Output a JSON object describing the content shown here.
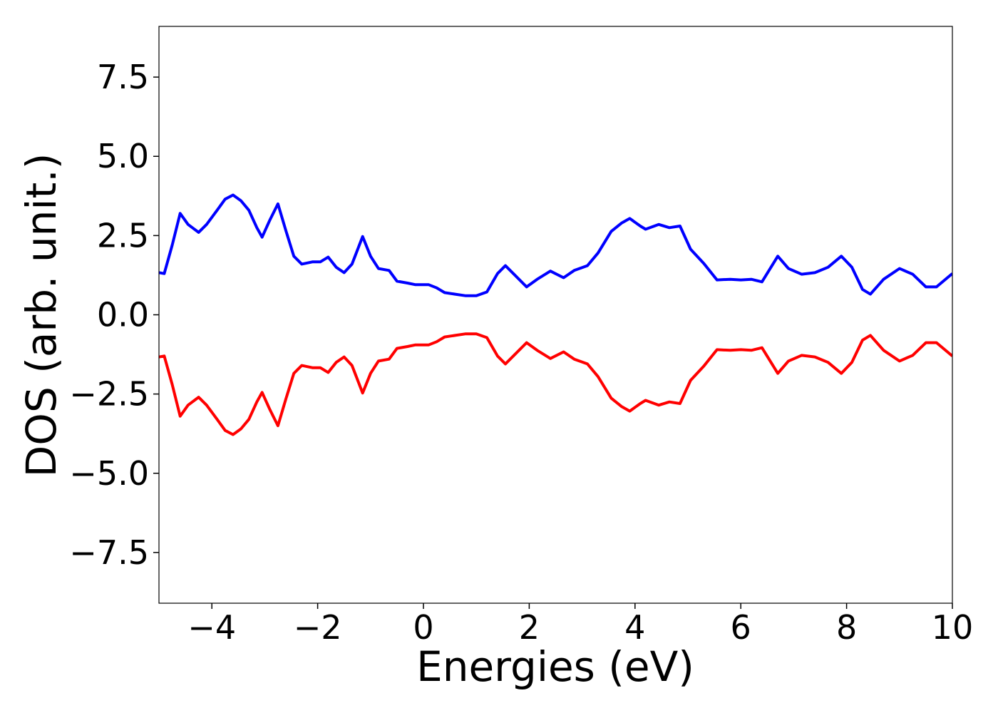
{
  "chart_data": {
    "type": "line",
    "xlabel": "Energies (eV)",
    "ylabel": "DOS (arb. unit.)",
    "x": [
      -5,
      -4.9,
      -4.75,
      -4.6,
      -4.45,
      -4.25,
      -4.1,
      -3.9,
      -3.75,
      -3.6,
      -3.45,
      -3.3,
      -3.15,
      -3.05,
      -2.9,
      -2.75,
      -2.6,
      -2.45,
      -2.3,
      -2.1,
      -1.95,
      -1.8,
      -1.65,
      -1.5,
      -1.35,
      -1.15,
      -1.0,
      -0.85,
      -0.65,
      -0.5,
      -0.3,
      -0.15,
      0.1,
      0.25,
      0.4,
      0.6,
      0.8,
      1.0,
      1.2,
      1.4,
      1.55,
      1.7,
      1.95,
      2.15,
      2.4,
      2.65,
      2.85,
      3.1,
      3.3,
      3.55,
      3.75,
      3.9,
      4.1,
      4.2,
      4.45,
      4.65,
      4.85,
      5.05,
      5.3,
      5.55,
      5.8,
      6.0,
      6.2,
      6.4,
      6.7,
      6.9,
      7.15,
      7.4,
      7.65,
      7.9,
      8.1,
      8.3,
      8.45,
      8.7,
      9.0,
      9.25,
      9.5,
      9.7,
      10
    ],
    "series": [
      {
        "color": "#0000ff",
        "values": [
          1.33,
          1.3,
          2.2,
          3.2,
          2.85,
          2.6,
          2.85,
          3.3,
          3.65,
          3.78,
          3.6,
          3.3,
          2.75,
          2.45,
          3.0,
          3.5,
          2.65,
          1.85,
          1.6,
          1.67,
          1.67,
          1.82,
          1.5,
          1.33,
          1.6,
          2.47,
          1.85,
          1.46,
          1.4,
          1.06,
          1.0,
          0.95,
          0.95,
          0.85,
          0.7,
          0.65,
          0.6,
          0.6,
          0.72,
          1.3,
          1.55,
          1.3,
          0.88,
          1.12,
          1.38,
          1.17,
          1.4,
          1.55,
          1.95,
          2.63,
          2.9,
          3.04,
          2.8,
          2.7,
          2.85,
          2.75,
          2.8,
          2.07,
          1.62,
          1.1,
          1.12,
          1.1,
          1.12,
          1.04,
          1.85,
          1.46,
          1.28,
          1.33,
          1.5,
          1.85,
          1.5,
          0.8,
          0.65,
          1.12,
          1.46,
          1.28,
          0.88,
          0.88,
          1.3
        ]
      },
      {
        "color": "#ff0000",
        "values": [
          -1.33,
          -1.3,
          -2.2,
          -3.2,
          -2.85,
          -2.6,
          -2.85,
          -3.3,
          -3.65,
          -3.78,
          -3.6,
          -3.3,
          -2.75,
          -2.45,
          -3.0,
          -3.5,
          -2.65,
          -1.85,
          -1.6,
          -1.67,
          -1.67,
          -1.82,
          -1.5,
          -1.33,
          -1.6,
          -2.47,
          -1.85,
          -1.46,
          -1.4,
          -1.06,
          -1.0,
          -0.95,
          -0.95,
          -0.85,
          -0.7,
          -0.65,
          -0.6,
          -0.6,
          -0.72,
          -1.3,
          -1.55,
          -1.3,
          -0.88,
          -1.12,
          -1.38,
          -1.17,
          -1.4,
          -1.55,
          -1.95,
          -2.63,
          -2.9,
          -3.04,
          -2.8,
          -2.7,
          -2.85,
          -2.75,
          -2.8,
          -2.07,
          -1.62,
          -1.1,
          -1.12,
          -1.1,
          -1.12,
          -1.04,
          -1.85,
          -1.46,
          -1.28,
          -1.33,
          -1.5,
          -1.85,
          -1.5,
          -0.8,
          -0.65,
          -1.12,
          -1.46,
          -1.28,
          -0.88,
          -0.88,
          -1.3
        ]
      }
    ],
    "xlim": [
      -5,
      10
    ],
    "xticks": [
      {
        "value": -4,
        "label": "−4"
      },
      {
        "value": -2,
        "label": "−2"
      },
      0,
      2,
      4,
      6,
      8,
      10
    ],
    "ylim": [
      -9.1,
      9.1
    ],
    "yticks": [
      {
        "value": -7.5,
        "label": "−7.5"
      },
      {
        "value": -5,
        "label": "−5.0"
      },
      {
        "value": -2.5,
        "label": "−2.5"
      },
      {
        "value": 0,
        "label": "0.0"
      },
      {
        "value": 2.5,
        "label": "2.5"
      },
      {
        "value": 5,
        "label": "5.0"
      },
      7.5
    ]
  }
}
